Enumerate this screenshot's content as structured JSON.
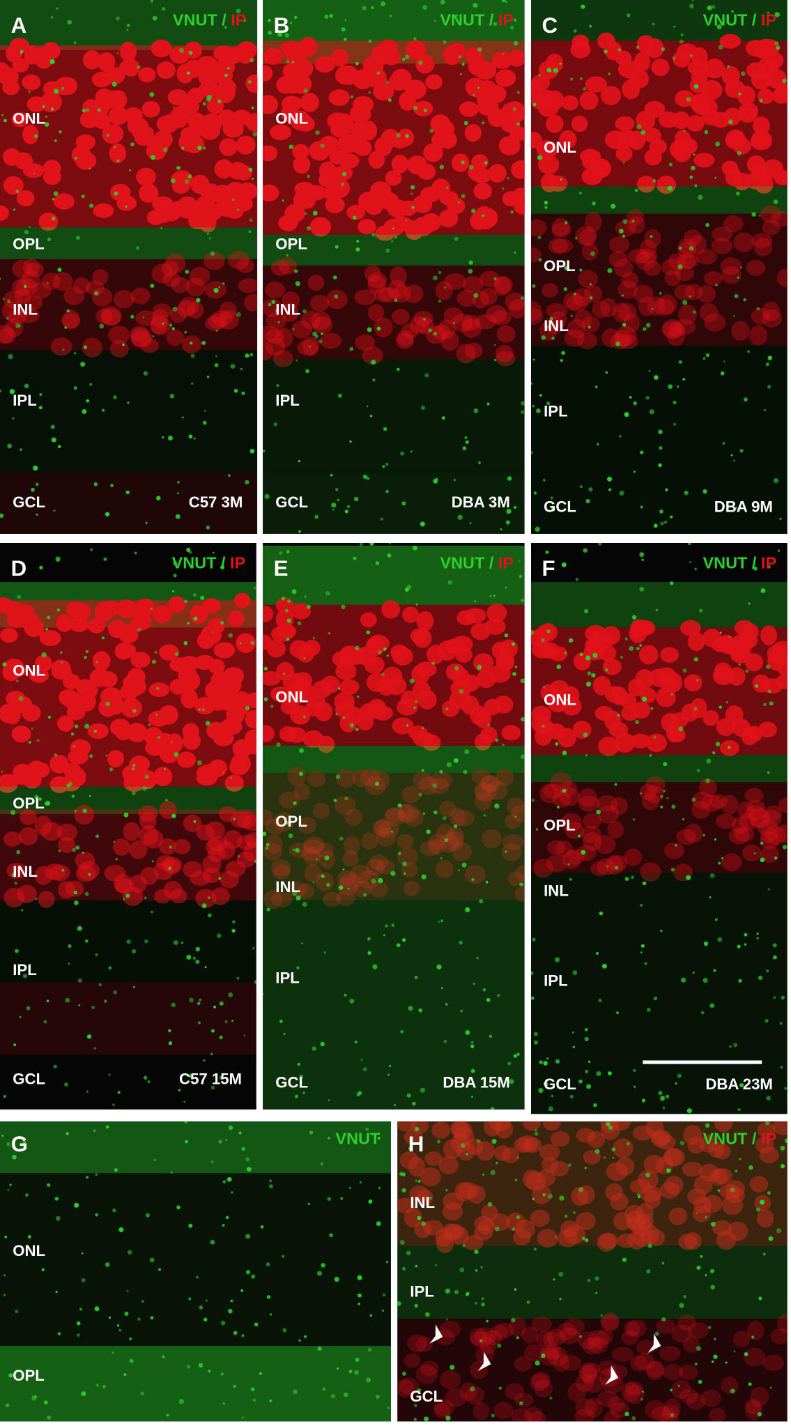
{
  "panels": [
    {
      "letter": "A",
      "legend": {
        "stain": "VNUT",
        "separator": "/",
        "counterstain": "IP"
      },
      "layers": [
        "ONL",
        "OPL",
        "INL",
        "IPL",
        "GCL"
      ],
      "condition": "C57 3M"
    },
    {
      "letter": "B",
      "legend": {
        "stain": "VNUT",
        "separator": "/",
        "counterstain": "IP"
      },
      "layers": [
        "ONL",
        "OPL",
        "INL",
        "IPL",
        "GCL"
      ],
      "condition": "DBA 3M"
    },
    {
      "letter": "C",
      "legend": {
        "stain": "VNUT",
        "separator": "/",
        "counterstain": "IP"
      },
      "layers": [
        "ONL",
        "OPL",
        "INL",
        "IPL",
        "GCL"
      ],
      "condition": "DBA 9M"
    },
    {
      "letter": "D",
      "legend": {
        "stain": "VNUT",
        "separator": "/",
        "counterstain": "IP"
      },
      "layers": [
        "ONL",
        "OPL",
        "INL",
        "IPL",
        "GCL"
      ],
      "condition": "C57 15M"
    },
    {
      "letter": "E",
      "legend": {
        "stain": "VNUT",
        "separator": "/",
        "counterstain": "IP"
      },
      "layers": [
        "ONL",
        "OPL",
        "INL",
        "IPL",
        "GCL"
      ],
      "condition": "DBA 15M"
    },
    {
      "letter": "F",
      "legend": {
        "stain": "VNUT",
        "separator": "/",
        "counterstain": "IP"
      },
      "layers": [
        "ONL",
        "OPL",
        "INL",
        "IPL",
        "GCL"
      ],
      "condition": "DBA 23M"
    },
    {
      "letter": "G",
      "legend": {
        "stain": "VNUT"
      },
      "layers": [
        "ONL",
        "OPL"
      ]
    },
    {
      "letter": "H",
      "legend": {
        "stain": "VNUT",
        "separator": "/",
        "counterstain": "IP"
      },
      "layers": [
        "INL",
        "IPL",
        "GCL"
      ]
    }
  ]
}
